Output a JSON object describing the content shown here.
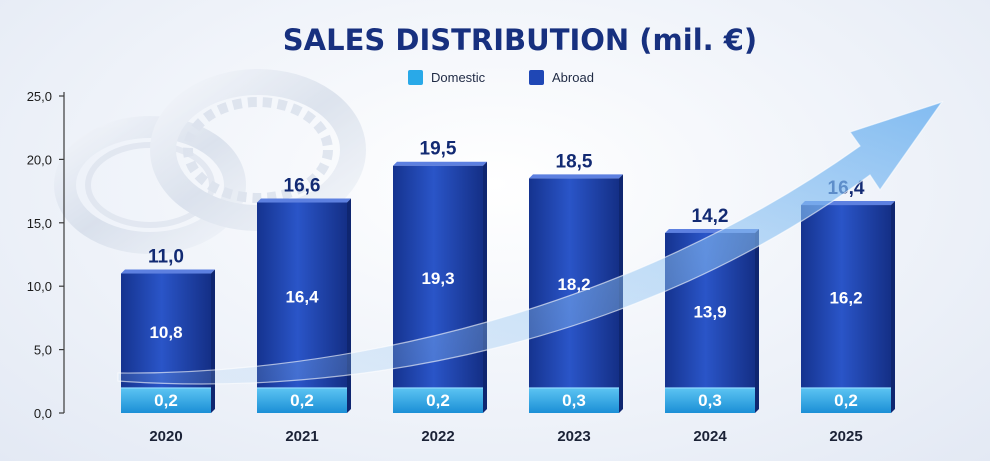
{
  "chart_data": {
    "type": "bar",
    "stacked": true,
    "title": "SALES DISTRIBUTION (mil. €)",
    "categories": [
      "2020",
      "2021",
      "2022",
      "2023",
      "2024",
      "2025"
    ],
    "totals": [
      "11,0",
      "16,6",
      "19,5",
      "18,5",
      "14,2",
      "16,4"
    ],
    "series": [
      {
        "name": "Domestic",
        "color": "#29a9e8",
        "values": [
          0.2,
          0.2,
          0.2,
          0.3,
          0.3,
          0.2
        ],
        "labels": [
          "0,2",
          "0,2",
          "0,2",
          "0,3",
          "0,3",
          "0,2"
        ]
      },
      {
        "name": "Abroad",
        "color": "#1f47b5",
        "values": [
          10.8,
          16.4,
          19.3,
          18.2,
          13.9,
          16.2
        ],
        "labels": [
          "10,8",
          "16,4",
          "19,3",
          "18,2",
          "13,9",
          "16,2"
        ]
      }
    ],
    "yticks": [
      "0,0",
      "5,0",
      "10,0",
      "15,0",
      "20,0",
      "25,0"
    ],
    "ylim": [
      0,
      25
    ],
    "legend_position": "top-center",
    "grid": false
  }
}
